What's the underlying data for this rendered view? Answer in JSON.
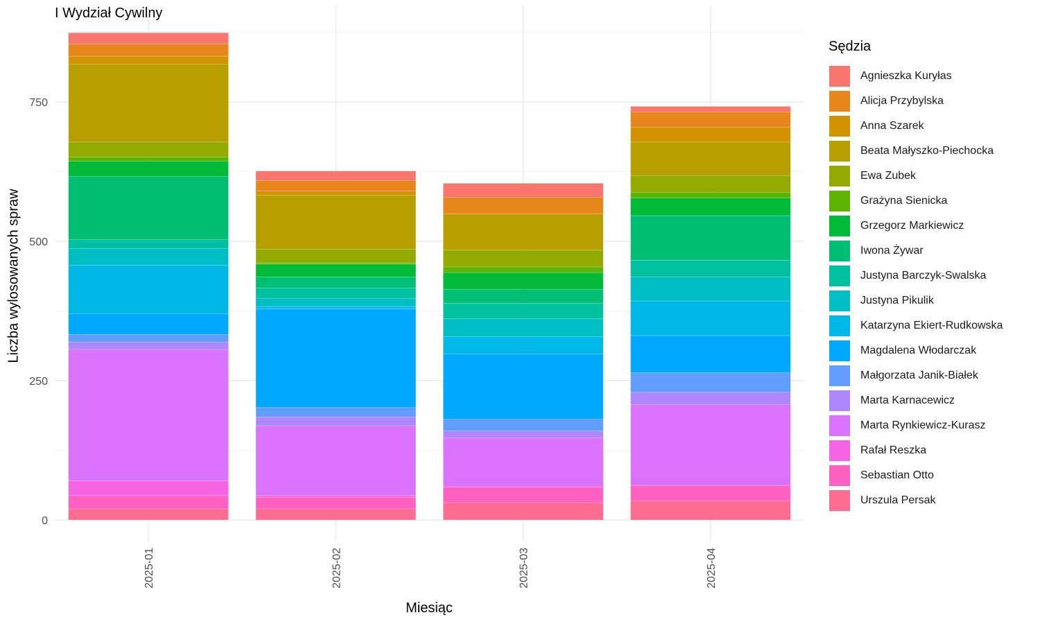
{
  "chart_data": {
    "type": "bar",
    "stacked": true,
    "title": "I Wydział Cywilny",
    "xlabel": "Miesiąc",
    "ylabel": "Liczba wylosowanych spraw",
    "ylim": [
      0,
      900
    ],
    "yticks": [
      0,
      250,
      500,
      750
    ],
    "grid": true,
    "legend_title": "Sędzia",
    "legend_position": "right",
    "categories": [
      "2025-01",
      "2025-02",
      "2025-03",
      "2025-04"
    ],
    "series": [
      {
        "name": "Agnieszka Kuryłas",
        "color": "#F8766D",
        "values": [
          20,
          17,
          25,
          10
        ]
      },
      {
        "name": "Alicja Przybylska",
        "color": "#E7861B",
        "values": [
          22,
          19,
          30,
          27
        ]
      },
      {
        "name": "Anna Szarek",
        "color": "#D39200",
        "values": [
          14,
          7,
          0,
          27
        ]
      },
      {
        "name": "Beata Małyszko-Piechocka",
        "color": "#B79F00",
        "values": [
          140,
          97,
          65,
          60
        ]
      },
      {
        "name": "Ewa Zubek",
        "color": "#93AA00",
        "values": [
          27,
          25,
          30,
          30
        ]
      },
      {
        "name": "Grażyna Sienicka",
        "color": "#5EB300",
        "values": [
          7,
          2,
          10,
          10
        ]
      },
      {
        "name": "Grzegorz Markiewicz",
        "color": "#00BA38",
        "values": [
          28,
          23,
          30,
          32
        ]
      },
      {
        "name": "Iwona Żywar",
        "color": "#00BF74",
        "values": [
          113,
          20,
          25,
          80
        ]
      },
      {
        "name": "Justyna Barczyk-Swalska",
        "color": "#00C19F",
        "values": [
          16,
          18,
          28,
          30
        ]
      },
      {
        "name": "Justyna Pikulik",
        "color": "#00BFC4",
        "values": [
          30,
          15,
          32,
          43
        ]
      },
      {
        "name": "Katarzyna Ekiert-Rudkowska",
        "color": "#00B8E7",
        "values": [
          87,
          4,
          31,
          62
        ]
      },
      {
        "name": "Magdalena Włodarczak",
        "color": "#00A9FF",
        "values": [
          37,
          177,
          117,
          67
        ]
      },
      {
        "name": "Małgorzata Janik-Białek",
        "color": "#619CFF",
        "values": [
          14,
          17,
          21,
          35
        ]
      },
      {
        "name": "Marta Karnacewicz",
        "color": "#AE87FF",
        "values": [
          13,
          16,
          13,
          22
        ]
      },
      {
        "name": "Marta Rynkiewicz-Kurasz",
        "color": "#DB72FB",
        "values": [
          236,
          125,
          88,
          145
        ]
      },
      {
        "name": "Rafał Reszka",
        "color": "#F564E3",
        "values": [
          26,
          3,
          0,
          0
        ]
      },
      {
        "name": "Sebastian Otto",
        "color": "#FF61C3",
        "values": [
          24,
          21,
          28,
          28
        ]
      },
      {
        "name": "Urszula Persak",
        "color": "#FF6C91",
        "values": [
          20,
          20,
          31,
          34
        ]
      }
    ]
  }
}
